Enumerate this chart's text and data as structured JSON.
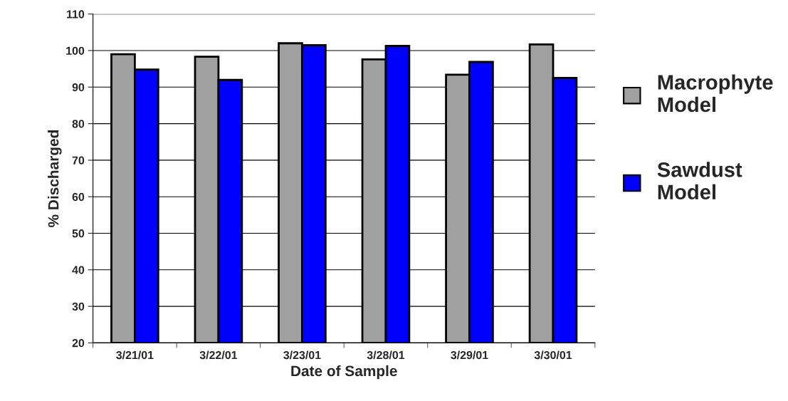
{
  "chart_data": {
    "type": "bar",
    "xlabel": "Date of Sample",
    "ylabel": "% Discharged",
    "categories": [
      "3/21/01",
      "3/22/01",
      "3/23/01",
      "3/28/01",
      "3/29/01",
      "3/30/01"
    ],
    "series": [
      {
        "name": "Macrophyte Model",
        "color": "#a0a0a0",
        "values": [
          99.0,
          98.3,
          102.0,
          97.6,
          93.4,
          101.7
        ]
      },
      {
        "name": "Sawdust Model",
        "color": "#0000ff",
        "values": [
          94.8,
          92.0,
          101.5,
          101.3,
          96.9,
          92.5
        ]
      }
    ],
    "ylim": [
      20,
      110
    ],
    "yticks": [
      20,
      30,
      40,
      50,
      60,
      70,
      80,
      90,
      100,
      110
    ],
    "grid": "y",
    "legend": "right"
  }
}
